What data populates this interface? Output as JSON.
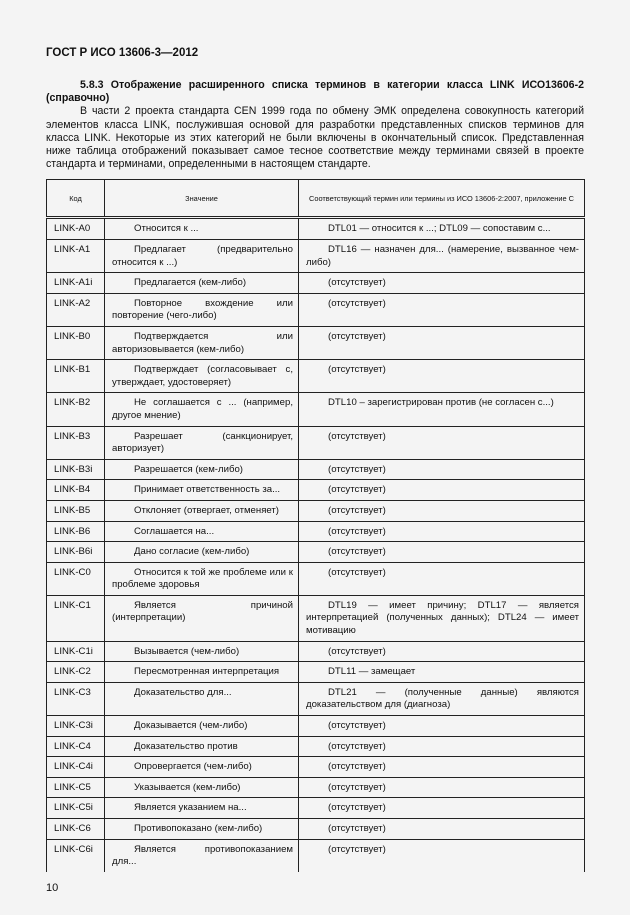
{
  "header": {
    "standard": "ГОСТ Р ИСО 13606-3—2012"
  },
  "section": {
    "heading": "5.8.3 Отображение расширенного списка терминов в категории класса LINK ИСО13606-2 (справочно)",
    "paragraph": "В части 2 проекта стандарта CEN 1999 года по обмену ЭМК определена совокупность категорий элементов класса LINK, послужившая основой для разработки представленных списков терминов для класса LINK. Некоторые из этих категорий не были включены в окончательный список. Представленная ниже таблица отображений показывает самое тесное соответствие между терминами связей в проекте стандарта и терминами, определенными в настоящем стандарте."
  },
  "table": {
    "columns": [
      "Код",
      "Значение",
      "Соответствующий термин или термины из ИСО 13606-2:2007, приложение С"
    ],
    "rows": [
      [
        "LINK-A0",
        "Относится к ...",
        "DTL01 — относится к ...; DTL09 — сопоставим с..."
      ],
      [
        "LINK-A1",
        "Предлагает (предварительно относится к ...)",
        "DTL16 — назначен для... (намерение, вызванное чем-либо)"
      ],
      [
        "LINK-A1i",
        "Предлагается (кем-либо)",
        "(отсутствует)"
      ],
      [
        "LINK-A2",
        "Повторное вхождение или повторение (чего-либо)",
        "(отсутствует)"
      ],
      [
        "LINK-B0",
        "Подтверждается или авторизовывается (кем-либо)",
        "(отсутствует)"
      ],
      [
        "LINK-B1",
        "Подтверждает (согласовывает с, утверждает, удостоверяет)",
        "(отсутствует)"
      ],
      [
        "LINK-B2",
        "Не соглашается с ... (например, другое мнение)",
        "DTL10 – зарегистрирован против (не согласен с...)"
      ],
      [
        "LINK-B3",
        "Разрешает (санкционирует, авторизует)",
        "(отсутствует)"
      ],
      [
        "LINK-B3i",
        "Разрешается (кем-либо)",
        "(отсутствует)"
      ],
      [
        "LINK-B4",
        "Принимает ответственность за...",
        "(отсутствует)"
      ],
      [
        "LINK-B5",
        "Отклоняет (отвергает, отменяет)",
        "(отсутствует)"
      ],
      [
        "LINK-B6",
        "Соглашается на...",
        "(отсутствует)"
      ],
      [
        "LINK-B6i",
        "Дано согласие (кем-либо)",
        "(отсутствует)"
      ],
      [
        "LINK-C0",
        "Относится к той же проблеме или к проблеме здоровья",
        "(отсутствует)"
      ],
      [
        "LINK-C1",
        "Является причиной (интерпретации)",
        "DTL19 — имеет причину; DTL17 — является интерпретацией (полученных данных); DTL24 — имеет мотивацию"
      ],
      [
        "LINK-C1i",
        "Вызывается (чем-либо)",
        "(отсутствует)"
      ],
      [
        "LINK-C2",
        "Пересмотренная интерпретация",
        "DTL11 — замещает"
      ],
      [
        "LINK-C3",
        "Доказательство для...",
        "DTL21 — (полученные данные) являются доказательством для (диагноза)"
      ],
      [
        "LINK-C3i",
        "Доказывается (чем-либо)",
        "(отсутствует)"
      ],
      [
        "LINK-C4",
        "Доказательство против",
        "(отсутствует)"
      ],
      [
        "LINK-C4i",
        "Опровергается (чем-либо)",
        "(отсутствует)"
      ],
      [
        "LINK-C5",
        "Указывается (кем-либо)",
        "(отсутствует)"
      ],
      [
        "LINK-C5i",
        "Является указанием на...",
        "(отсутствует)"
      ],
      [
        "LINK-C6",
        "Противопоказано (кем-либо)",
        "(отсутствует)"
      ],
      [
        "LINK-C6i",
        "Является противопоказанием для...",
        "(отсутствует)"
      ]
    ]
  },
  "footer": {
    "page_number": "10"
  }
}
